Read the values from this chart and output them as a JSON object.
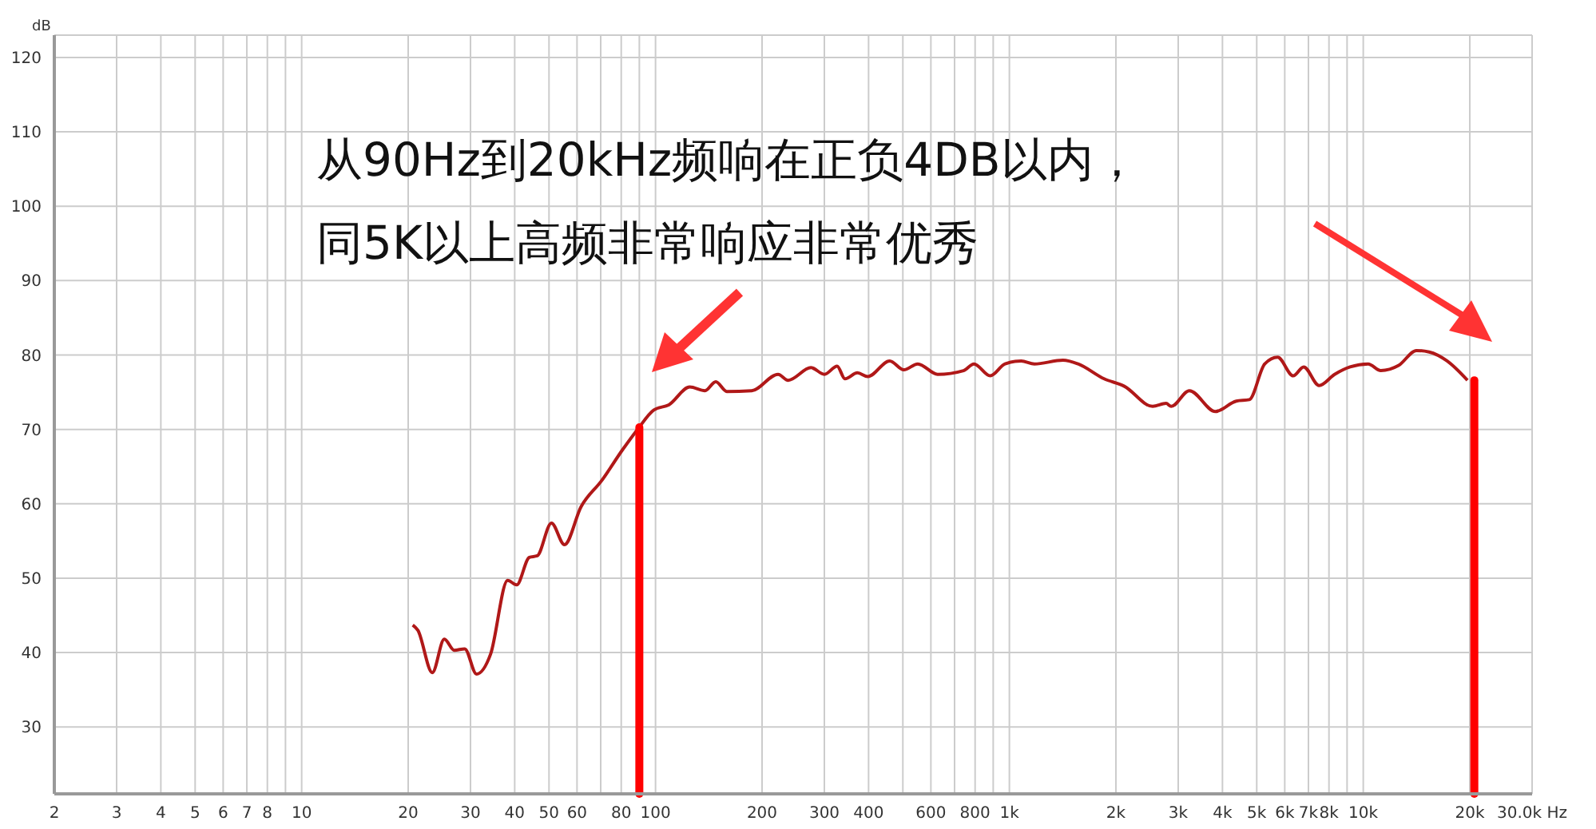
{
  "chart_data": {
    "type": "line",
    "ylabel": "dB",
    "annotations": [
      "从90Hz到20kHz频响在正负4DB以内，",
      "同5K以上高频非常响应非常优秀"
    ],
    "log": "x",
    "grid": true,
    "marker": "none",
    "line_style": "solid",
    "xlim": [
      2,
      30000
    ],
    "ylim": [
      21,
      123
    ],
    "xticks": [
      2,
      3,
      4,
      5,
      6,
      7,
      8,
      {
        "value": 9,
        "label": null
      },
      10,
      20,
      30,
      40,
      50,
      60,
      {
        "value": 70,
        "label": null
      },
      80,
      {
        "value": 90,
        "label": null
      },
      100,
      200,
      300,
      400,
      {
        "value": 500,
        "label": null
      },
      600,
      {
        "value": 700,
        "label": null
      },
      800,
      {
        "value": 900,
        "label": null
      },
      {
        "value": 1000,
        "label": "1k"
      },
      {
        "value": 2000,
        "label": "2k"
      },
      {
        "value": 3000,
        "label": "3k"
      },
      {
        "value": 4000,
        "label": "4k"
      },
      {
        "value": 5000,
        "label": "5k"
      },
      {
        "value": 6000,
        "label": "6k"
      },
      {
        "value": 7000,
        "label": "7k"
      },
      {
        "value": 8000,
        "label": "8k"
      },
      {
        "value": 9000,
        "label": null
      },
      {
        "value": 10000,
        "label": "10k"
      },
      {
        "value": 20000,
        "label": "20k"
      },
      {
        "value": 30000,
        "label": "30.0k Hz"
      }
    ],
    "yticks": [
      30,
      40,
      50,
      60,
      70,
      80,
      90,
      100,
      110,
      120
    ],
    "ref_lines": [
      {
        "axis": "x",
        "value": 90,
        "color": "#ff0000"
      },
      {
        "axis": "x",
        "value": 20600,
        "color": "#ff0000"
      }
    ],
    "series": [
      {
        "color": "#b01818",
        "x": [
          20.6,
          21.3,
          23.4,
          25.3,
          27,
          28.9,
          31.2,
          34.2,
          38.2,
          40.5,
          44,
          46.3,
          50.8,
          55.3,
          61.6,
          70.4,
          80.8,
          89.3,
          98.9,
          109,
          125,
          138,
          148,
          159,
          187,
          222,
          237,
          275,
          300,
          326,
          343,
          372,
          398,
          459,
          503,
          551,
          627,
          742,
          794,
          883,
          972,
          1080,
          1177,
          1417,
          1564,
          1852,
          2112,
          2541,
          2772,
          2866,
          3226,
          3821,
          4376,
          4765,
          5268,
          5728,
          6341,
          6786,
          7504,
          8300,
          9180,
          10320,
          11210,
          12590,
          14140,
          15360,
          17250,
          19700
        ],
        "values": [
          43.7,
          43,
          37.3,
          41.8,
          40.3,
          40.5,
          37.1,
          39.8,
          49.7,
          49.1,
          52.8,
          53,
          57.4,
          54.5,
          59.6,
          63.1,
          67.3,
          70.1,
          72.6,
          73.3,
          75.7,
          75.2,
          76.4,
          75.1,
          75.2,
          77.4,
          76.6,
          78.3,
          77.4,
          78.5,
          76.8,
          77.6,
          77.1,
          79.2,
          78,
          78.8,
          77.4,
          77.9,
          78.8,
          77.2,
          78.8,
          79.2,
          78.8,
          79.3,
          78.8,
          76.8,
          75.8,
          73.1,
          73.5,
          73.1,
          75.2,
          72.4,
          73.8,
          74,
          78.8,
          79.7,
          77.2,
          78.4,
          75.9,
          77.4,
          78.4,
          78.8,
          77.9,
          78.6,
          80.6,
          80.4,
          79.2,
          76.6
        ]
      }
    ]
  }
}
